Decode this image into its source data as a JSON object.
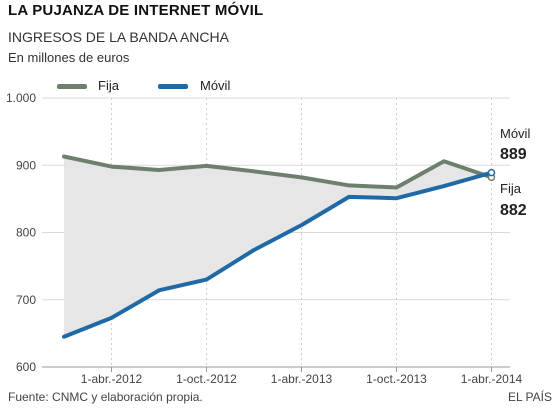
{
  "header": {
    "title": "LA PUJANZA DE INTERNET MÓVIL",
    "subtitle": "INGRESOS DE LA BANDA ANCHA",
    "unit": "En millones de euros"
  },
  "footer": {
    "source": "Fuente: CNMC y elaboración propia.",
    "brand": "EL PAÍS"
  },
  "chart_data": {
    "type": "line",
    "title": "INGRESOS DE LA BANDA ANCHA",
    "ylabel": "En millones de euros",
    "ylim": [
      600,
      1000
    ],
    "y_ticks": [
      1000,
      900,
      800,
      700,
      600
    ],
    "y_tick_labels": [
      "1.000",
      "900",
      "800",
      "700",
      "600"
    ],
    "x_ticks": [
      "1-abr.-2012",
      "1-oct.-2012",
      "1-abr.-2013",
      "1-oct.-2013",
      "1-abr.-2014"
    ],
    "x": [
      "2011-12",
      "2012-03",
      "2012-06",
      "2012-09",
      "2012-12",
      "2013-03",
      "2013-06",
      "2013-09",
      "2013-12",
      "2014-03"
    ],
    "legend_position": "top-left",
    "grid": "vertical dashed",
    "shading": "area between series",
    "series": [
      {
        "name": "Fija",
        "color": "#6e7f6e",
        "values": [
          913,
          898,
          893,
          899,
          891,
          882,
          870,
          867,
          906,
          882
        ]
      },
      {
        "name": "Móvil",
        "color": "#1f6aa6",
        "values": [
          645,
          673,
          714,
          730,
          774,
          811,
          853,
          851,
          869,
          889
        ]
      }
    ],
    "end_labels": [
      {
        "name": "Móvil",
        "value": "889"
      },
      {
        "name": "Fija",
        "value": "882"
      }
    ]
  }
}
